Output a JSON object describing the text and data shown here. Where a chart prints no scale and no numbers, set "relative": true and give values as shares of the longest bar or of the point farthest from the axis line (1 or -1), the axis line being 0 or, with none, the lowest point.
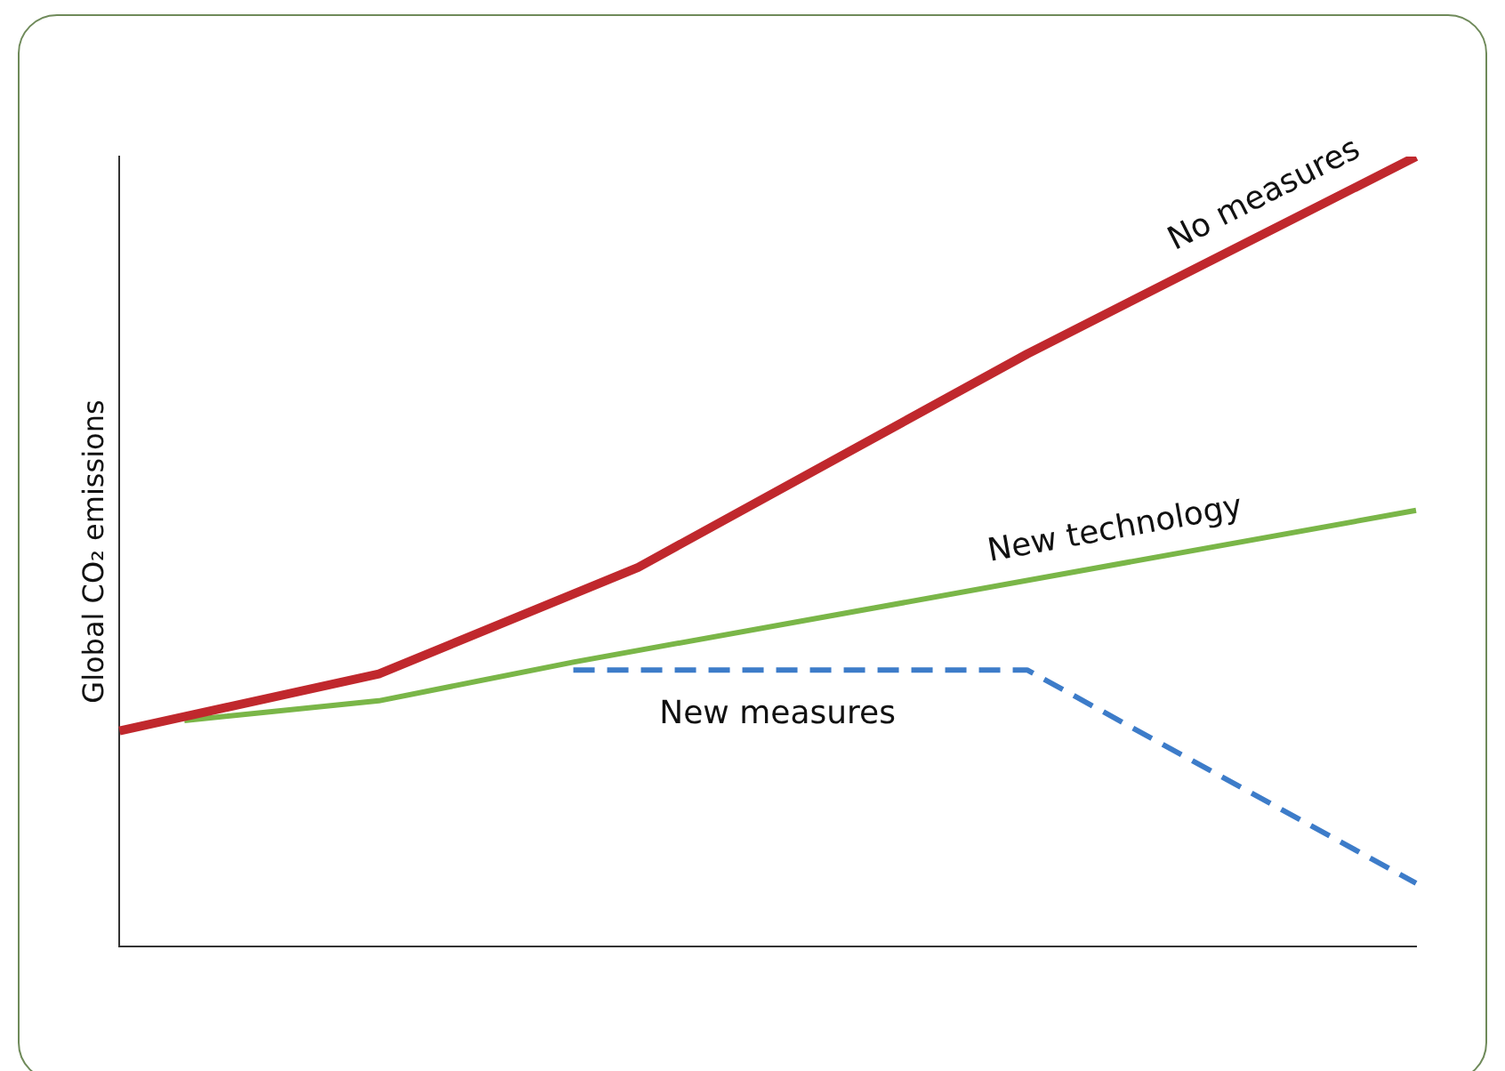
{
  "chart_data": {
    "type": "line",
    "ylabel": "Global CO₂ emissions",
    "relative": true,
    "tick_labels": false,
    "legend": false,
    "categories": [
      null,
      null,
      null,
      null,
      null,
      null,
      null,
      null,
      null,
      null,
      null,
      null,
      null,
      null,
      null,
      null,
      null,
      null,
      null,
      null,
      null
    ],
    "series": [
      {
        "name": "No measures",
        "color": "#c0282d",
        "values": [
          0.273,
          null,
          null,
          null,
          0.345,
          null,
          null,
          null,
          0.48,
          null,
          null,
          null,
          null,
          null,
          0.75,
          null,
          null,
          null,
          null,
          null,
          1
        ]
      },
      {
        "name": "New technology",
        "color": "#7ab648",
        "values": [
          null,
          0.286,
          null,
          null,
          0.311,
          null,
          null,
          0.36,
          null,
          null,
          null,
          null,
          null,
          null,
          null,
          null,
          null,
          null,
          null,
          null,
          0.552
        ]
      },
      {
        "name": "New measures",
        "color": "#3d7cc9",
        "line_style": "dashed",
        "values": [
          null,
          null,
          null,
          null,
          null,
          null,
          null,
          0.35,
          null,
          null,
          null,
          null,
          null,
          null,
          0.35,
          null,
          null,
          null,
          null,
          null,
          0.08
        ]
      }
    ]
  }
}
